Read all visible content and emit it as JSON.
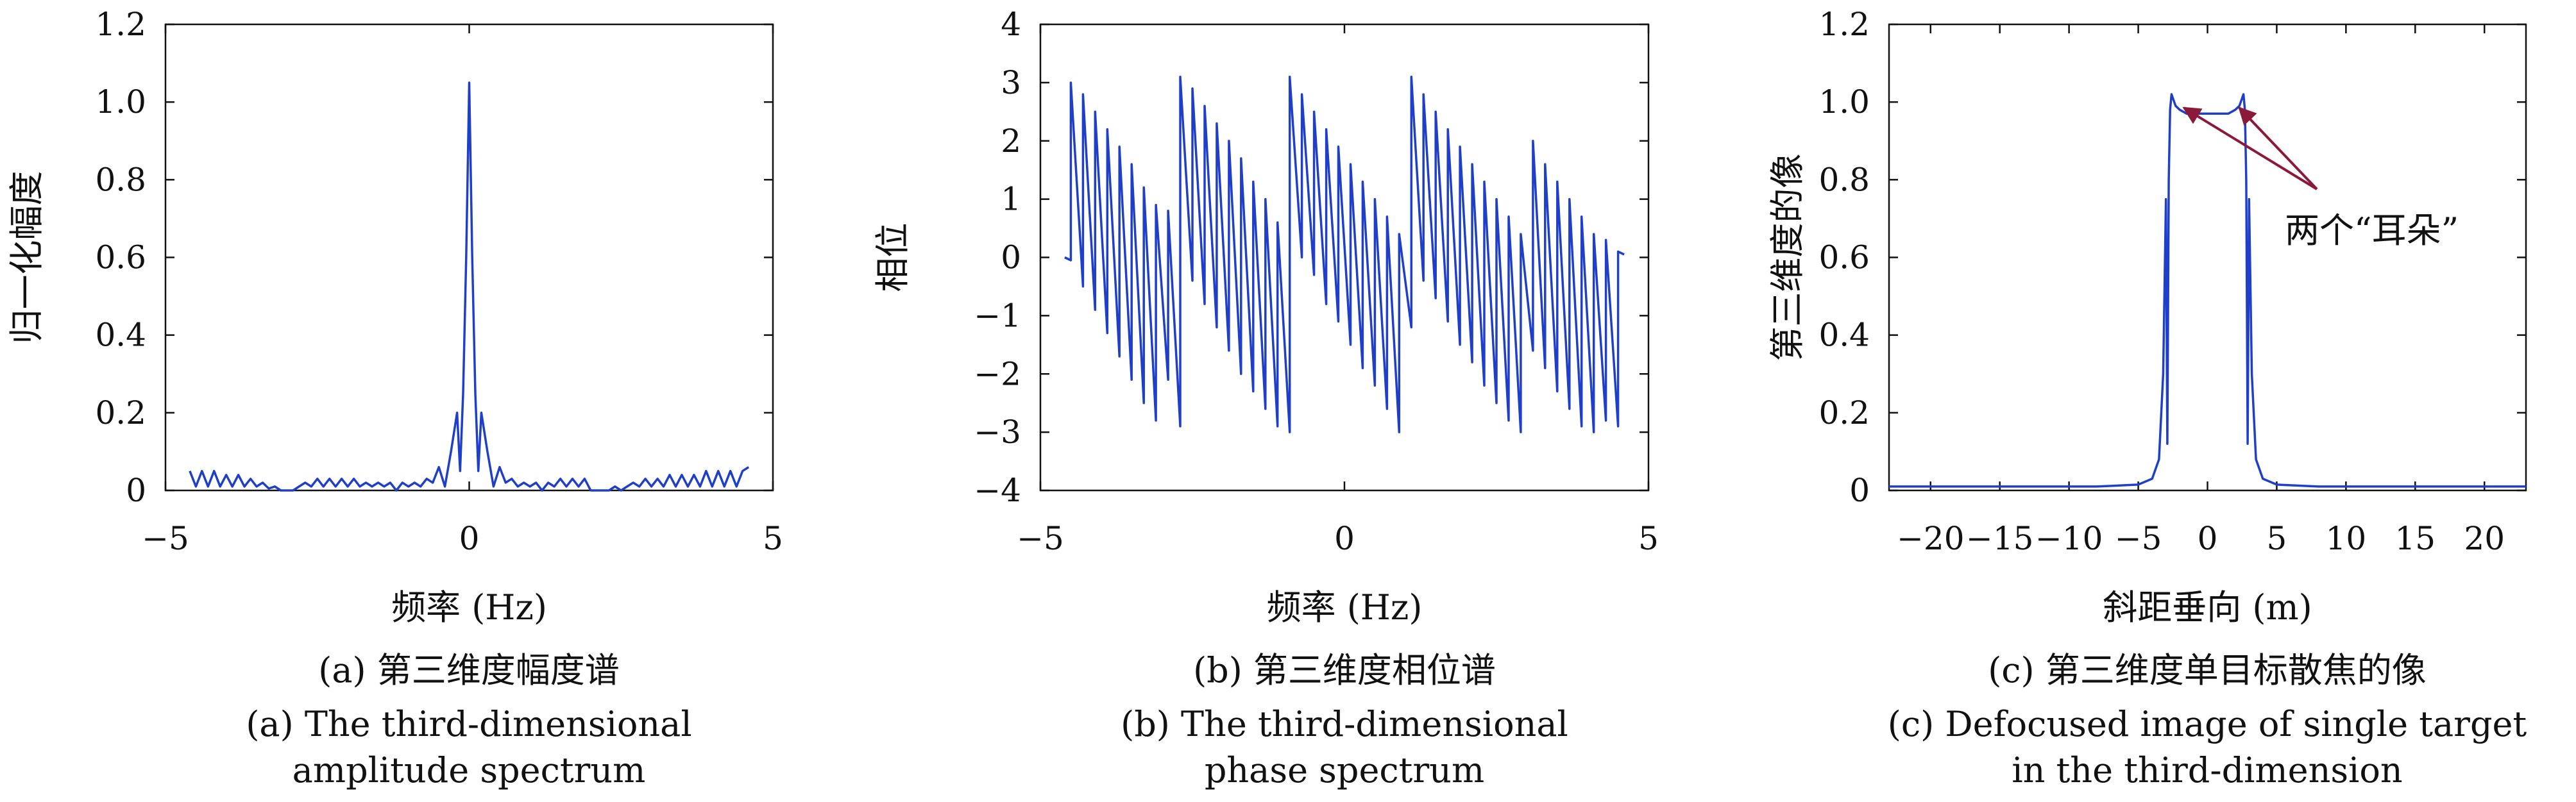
{
  "chart_data": [
    {
      "type": "line",
      "ylabel": "归一化幅度",
      "xlabel": "频率 (Hz)",
      "xlim": [
        -5,
        5
      ],
      "ylim": [
        0,
        1.2
      ],
      "xticks": [
        "−5",
        "0",
        "5"
      ],
      "yticks": [
        "0",
        "0.2",
        "0.4",
        "0.6",
        "0.8",
        "1.0",
        "1.2"
      ],
      "caption_cn": "(a) 第三维度幅度谱",
      "caption_en": [
        "(a) The third-dimensional",
        "amplitude spectrum"
      ],
      "line_color": "#1f3fc9",
      "series": [
        {
          "x": [
            -4.6,
            -4.5,
            -4.4,
            -4.3,
            -4.2,
            -4.1,
            -4.0,
            -3.9,
            -3.8,
            -3.7,
            -3.6,
            -3.5,
            -3.4,
            -3.3,
            -3.2,
            -3.1,
            -3.0,
            -2.9,
            -2.8,
            -2.7,
            -2.6,
            -2.5,
            -2.4,
            -2.3,
            -2.2,
            -2.1,
            -2.0,
            -1.9,
            -1.8,
            -1.7,
            -1.6,
            -1.5,
            -1.4,
            -1.3,
            -1.2,
            -1.1,
            -1.0,
            -0.9,
            -0.8,
            -0.7,
            -0.6,
            -0.5,
            -0.4,
            -0.3,
            -0.2,
            -0.15,
            -0.1,
            -0.05,
            0,
            0.05,
            0.1,
            0.15,
            0.2,
            0.3,
            0.4,
            0.5,
            0.6,
            0.7,
            0.8,
            0.9,
            1.0,
            1.1,
            1.2,
            1.3,
            1.4,
            1.5,
            1.6,
            1.7,
            1.8,
            1.9,
            2.0,
            2.1,
            2.2,
            2.3,
            2.4,
            2.5,
            2.6,
            2.7,
            2.8,
            2.9,
            3.0,
            3.1,
            3.2,
            3.3,
            3.4,
            3.5,
            3.6,
            3.7,
            3.8,
            3.9,
            4.0,
            4.1,
            4.2,
            4.3,
            4.4,
            4.5,
            4.6
          ],
          "y": [
            0.05,
            0.01,
            0.05,
            0.01,
            0.05,
            0.01,
            0.04,
            0.01,
            0.04,
            0.01,
            0.03,
            0.01,
            0.02,
            0.005,
            0.01,
            0.0,
            0.0,
            0.0,
            0.01,
            0.02,
            0.01,
            0.03,
            0.01,
            0.03,
            0.01,
            0.03,
            0.01,
            0.03,
            0.01,
            0.02,
            0.01,
            0.02,
            0.01,
            0.02,
            0.0,
            0.02,
            0.01,
            0.02,
            0.01,
            0.03,
            0.02,
            0.06,
            0.01,
            0.1,
            0.2,
            0.05,
            0.25,
            0.6,
            1.05,
            0.6,
            0.25,
            0.05,
            0.2,
            0.1,
            0.01,
            0.06,
            0.02,
            0.03,
            0.01,
            0.02,
            0.01,
            0.02,
            0.0,
            0.02,
            0.01,
            0.03,
            0.01,
            0.03,
            0.01,
            0.03,
            0.0,
            0.0,
            0.0,
            0.0,
            0.01,
            0.0,
            0.01,
            0.02,
            0.01,
            0.03,
            0.01,
            0.03,
            0.01,
            0.04,
            0.01,
            0.04,
            0.01,
            0.04,
            0.01,
            0.05,
            0.01,
            0.05,
            0.01,
            0.05,
            0.01,
            0.05,
            0.06
          ]
        }
      ]
    },
    {
      "type": "line",
      "ylabel": "相位",
      "xlabel": "频率 (Hz)",
      "xlim": [
        -5,
        5
      ],
      "ylim": [
        -4,
        4
      ],
      "xticks": [
        "−5",
        "0",
        "5"
      ],
      "yticks": [
        "−4",
        "−3",
        "−2",
        "−1",
        "0",
        "1",
        "2",
        "3",
        "4"
      ],
      "caption_cn": "(b) 第三维度相位谱",
      "caption_en": [
        "(b) The third-dimensional",
        "phase spectrum"
      ],
      "line_color": "#1f3fc9",
      "series": [
        {
          "x": [
            -4.6,
            -4.5,
            -4.5,
            -4.3,
            -4.3,
            -4.1,
            -4.1,
            -3.9,
            -3.9,
            -3.7,
            -3.7,
            -3.5,
            -3.5,
            -3.3,
            -3.3,
            -3.1,
            -3.1,
            -2.9,
            -2.9,
            -2.7,
            -2.7,
            -2.5,
            -2.5,
            -2.3,
            -2.3,
            -2.1,
            -2.1,
            -1.9,
            -1.9,
            -1.7,
            -1.7,
            -1.5,
            -1.5,
            -1.3,
            -1.3,
            -1.1,
            -1.1,
            -0.9,
            -0.9,
            -0.7,
            -0.7,
            -0.5,
            -0.5,
            -0.3,
            -0.3,
            -0.1,
            -0.1,
            0.1,
            0.1,
            0.3,
            0.3,
            0.5,
            0.5,
            0.7,
            0.7,
            0.9,
            0.9,
            1.1,
            1.1,
            1.3,
            1.3,
            1.5,
            1.5,
            1.7,
            1.7,
            1.9,
            1.9,
            2.1,
            2.1,
            2.3,
            2.3,
            2.5,
            2.5,
            2.7,
            2.7,
            2.9,
            2.9,
            3.1,
            3.1,
            3.3,
            3.3,
            3.5,
            3.5,
            3.7,
            3.7,
            3.9,
            3.9,
            4.1,
            4.1,
            4.3,
            4.3,
            4.5,
            4.5,
            4.6
          ],
          "y": [
            0.0,
            -0.05,
            3.0,
            -0.5,
            2.8,
            -0.9,
            2.5,
            -1.3,
            2.2,
            -1.7,
            1.9,
            -2.1,
            1.6,
            -2.5,
            1.2,
            -2.8,
            0.9,
            -2.1,
            0.8,
            -2.9,
            3.1,
            -0.4,
            2.9,
            -0.8,
            2.6,
            -1.2,
            2.3,
            -1.6,
            2.0,
            -2.0,
            1.7,
            -2.3,
            1.3,
            -2.6,
            1.0,
            -2.9,
            0.6,
            -3.0,
            3.1,
            0.0,
            2.8,
            -0.3,
            2.5,
            -0.8,
            2.2,
            -1.1,
            1.9,
            -1.5,
            1.6,
            -1.9,
            1.3,
            -2.2,
            1.0,
            -2.6,
            0.7,
            -3.0,
            0.4,
            -1.2,
            3.1,
            -0.4,
            2.8,
            -0.7,
            2.5,
            -1.1,
            2.2,
            -1.5,
            1.9,
            -1.8,
            1.6,
            -2.2,
            1.3,
            -2.5,
            1.0,
            -2.8,
            0.7,
            -3.0,
            0.4,
            -1.6,
            2.0,
            -1.9,
            1.6,
            -2.3,
            1.3,
            -2.6,
            1.0,
            -2.9,
            0.7,
            -3.0,
            0.4,
            -2.8,
            0.3,
            -2.9,
            0.1,
            0.05
          ]
        }
      ]
    },
    {
      "type": "line",
      "ylabel": "第三维度的像",
      "xlabel": "斜距垂向 (m)",
      "xlim": [
        -23,
        23
      ],
      "ylim": [
        0,
        1.2
      ],
      "xticks": [
        "−20",
        "−15",
        "−10",
        "−5",
        "0",
        "5",
        "10",
        "15",
        "20"
      ],
      "yticks": [
        "0",
        "0.2",
        "0.4",
        "0.6",
        "0.8",
        "1.0",
        "1.2"
      ],
      "caption_cn": "(c) 第三维度单目标散焦的像",
      "caption_en": [
        "(c) Defocused image of single target",
        "in the third-dimension"
      ],
      "annotation": "两个“耳朵”",
      "annotation_color": "#8b1a3a",
      "line_color": "#1f3fc9",
      "series": [
        {
          "x": [
            -23,
            -15,
            -8,
            -5,
            -4,
            -3.5,
            -3.2,
            -3.0,
            -2.9,
            -2.8,
            -2.7,
            -2.6,
            -2.5,
            -2.3,
            -2.0,
            -1.5,
            -1.0,
            -0.5,
            0,
            0.5,
            1.0,
            1.5,
            2.0,
            2.3,
            2.5,
            2.6,
            2.7,
            2.8,
            2.9,
            3.0,
            3.2,
            3.5,
            4.0,
            5.0,
            8.0,
            15,
            23
          ],
          "y": [
            0.01,
            0.01,
            0.01,
            0.015,
            0.03,
            0.08,
            0.3,
            0.75,
            0.12,
            0.8,
            0.98,
            1.02,
            1.01,
            0.99,
            0.98,
            0.97,
            0.97,
            0.97,
            0.97,
            0.97,
            0.97,
            0.97,
            0.98,
            0.99,
            1.01,
            1.02,
            0.98,
            0.8,
            0.12,
            0.75,
            0.3,
            0.08,
            0.03,
            0.015,
            0.01,
            0.01,
            0.01
          ]
        }
      ]
    }
  ]
}
